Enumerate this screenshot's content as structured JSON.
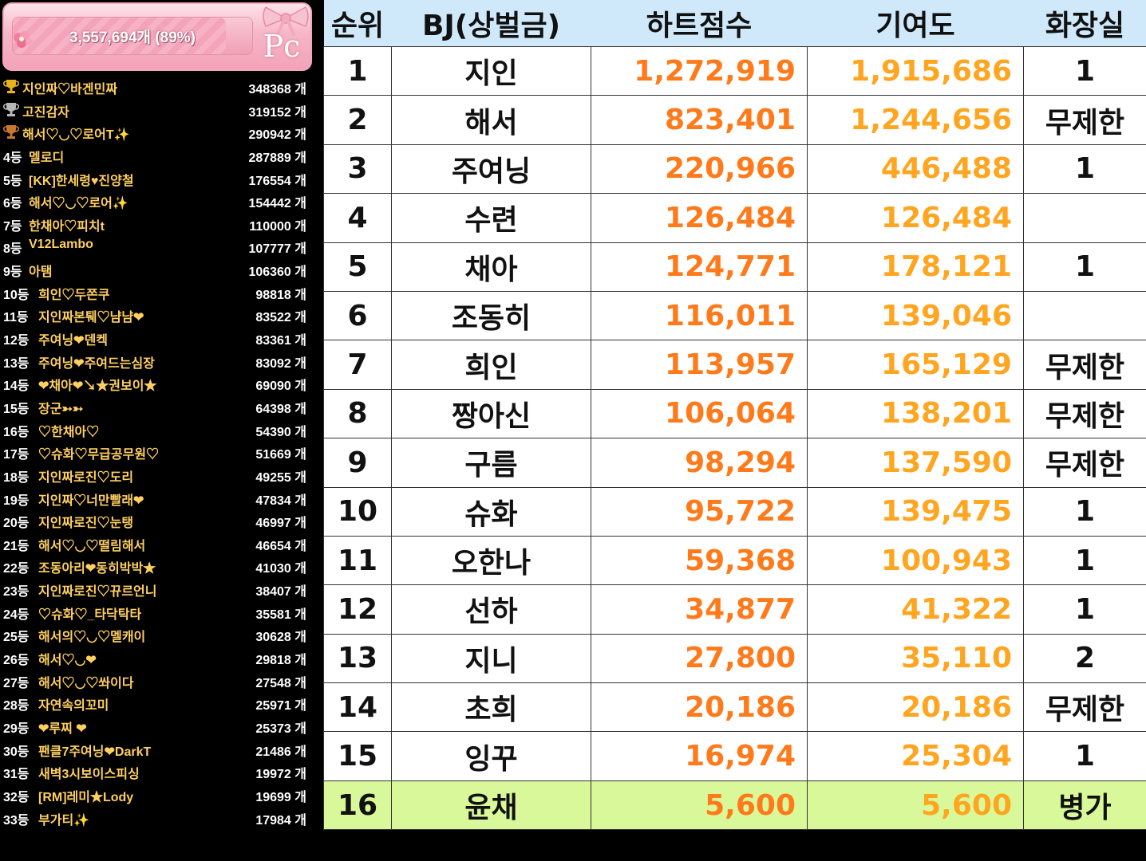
{
  "banner": {
    "progress_text": "3,557,694개 (89%)",
    "progress_percent": 89,
    "logo_text": "Pc"
  },
  "colors": {
    "heart_score": "#ff7a1a",
    "contribution": "#ffa51f",
    "header_bg": "#cfe9fb",
    "highlight_row": "#d9f89a",
    "donor_name": "#ffd060",
    "gold_trophy": "#e8b21e",
    "silver_trophy": "#b8b8b8",
    "bronze_trophy": "#c8782c"
  },
  "donors": [
    {
      "rank": "",
      "trophy": "gold",
      "name": "지인짜♡바겐민짜",
      "amount": "348368 개"
    },
    {
      "rank": "",
      "trophy": "silver",
      "name": "고진감자",
      "amount": "319152 개"
    },
    {
      "rank": "",
      "trophy": "bronze",
      "name": "해서♡◡♡로어T✨",
      "amount": "290942 개"
    },
    {
      "rank": "4등",
      "name": "  멜로디",
      "amount": "287889 개"
    },
    {
      "rank": "5등",
      "name": "[KK]한세령♥진양철",
      "amount": "176554 개"
    },
    {
      "rank": "6등",
      "name": "해서♡◡♡로어✨",
      "amount": "154442 개"
    },
    {
      "rank": "7등",
      "name": "한채아♡피치t",
      "amount": "110000 개"
    },
    {
      "rank": "8등",
      "name": "V12Lambo",
      "amount": "107777 개"
    },
    {
      "rank": "9등",
      "name": "아탬",
      "amount": "106360 개"
    },
    {
      "rank": "10등",
      "name": "희인♡두쫀쿠",
      "amount": "98818 개"
    },
    {
      "rank": "11등",
      "name": "지인짜본퉤♡냠냠❤",
      "amount": "83522 개"
    },
    {
      "rank": "12등",
      "name": "주여닝❤덴켁",
      "amount": "83361 개"
    },
    {
      "rank": "13등",
      "name": "주여닝❤주여드는심장",
      "amount": "83092 개"
    },
    {
      "rank": "14등",
      "name": "❤채아❤↘★권보이★",
      "amount": "69090 개"
    },
    {
      "rank": "15등",
      "name": "장군➳➳",
      "amount": "64398 개"
    },
    {
      "rank": "16등",
      "name": "♡한채아♡",
      "amount": "54390 개"
    },
    {
      "rank": "17등",
      "name": "♡슈화♡무급공무원♡",
      "amount": "51669 개"
    },
    {
      "rank": "18등",
      "name": "지인짜로진♡도리",
      "amount": "49255 개"
    },
    {
      "rank": "19등",
      "name": "지인짜♡너만빨래❤",
      "amount": "47834 개"
    },
    {
      "rank": "20등",
      "name": "지인짜로진♡눈탱",
      "amount": "46997 개"
    },
    {
      "rank": "21등",
      "name": "해서♡◡♡떨림해서",
      "amount": "46654 개"
    },
    {
      "rank": "22등",
      "name": "조동아리❤동히박박★",
      "amount": "41030 개"
    },
    {
      "rank": "23등",
      "name": "지인짜로진♡뀨르언니",
      "amount": "38407 개"
    },
    {
      "rank": "24등",
      "name": "♡슈화♡_타닥탁타",
      "amount": "35581 개"
    },
    {
      "rank": "25등",
      "name": "해서의♡◡♡멜캐이",
      "amount": "30628 개"
    },
    {
      "rank": "26등",
      "name": "해서♡◡❤",
      "amount": "29818 개"
    },
    {
      "rank": "27등",
      "name": "해서♡◡♡쏴이다",
      "amount": "27548 개"
    },
    {
      "rank": "28등",
      "name": "자연속의꼬미",
      "amount": "25971 개"
    },
    {
      "rank": "29등",
      "name": "❤루찌    ❤",
      "amount": "25373 개"
    },
    {
      "rank": "30등",
      "name": "팬클7주여닝❤DarkT",
      "amount": "21486 개"
    },
    {
      "rank": "31등",
      "name": "새벽3시보이스피싱",
      "amount": "19972 개"
    },
    {
      "rank": "32등",
      "name": "[RM]레미★Lody",
      "amount": "19699 개"
    },
    {
      "rank": "33등",
      "name": "부가티✨",
      "amount": "17984 개"
    }
  ],
  "table": {
    "headers": [
      "순위",
      "BJ(상벌금)",
      "하트점수",
      "기여도",
      "화장실"
    ],
    "rows": [
      {
        "rank": "1",
        "bj": "지인",
        "heart": "1,272,919",
        "contrib": "1,915,686",
        "rest": "1"
      },
      {
        "rank": "2",
        "bj": "해서",
        "heart": "823,401",
        "contrib": "1,244,656",
        "rest": "무제한"
      },
      {
        "rank": "3",
        "bj": "주여닝",
        "heart": "220,966",
        "contrib": "446,488",
        "rest": "1"
      },
      {
        "rank": "4",
        "bj": "수련",
        "heart": "126,484",
        "contrib": "126,484",
        "rest": ""
      },
      {
        "rank": "5",
        "bj": "채아",
        "heart": "124,771",
        "contrib": "178,121",
        "rest": "1"
      },
      {
        "rank": "6",
        "bj": "조동히",
        "heart": "116,011",
        "contrib": "139,046",
        "rest": ""
      },
      {
        "rank": "7",
        "bj": "희인",
        "heart": "113,957",
        "contrib": "165,129",
        "rest": "무제한"
      },
      {
        "rank": "8",
        "bj": "짱아신",
        "heart": "106,064",
        "contrib": "138,201",
        "rest": "무제한"
      },
      {
        "rank": "9",
        "bj": "구름",
        "heart": "98,294",
        "contrib": "137,590",
        "rest": "무제한"
      },
      {
        "rank": "10",
        "bj": "슈화",
        "heart": "95,722",
        "contrib": "139,475",
        "rest": "1"
      },
      {
        "rank": "11",
        "bj": "오한나",
        "heart": "59,368",
        "contrib": "100,943",
        "rest": "1"
      },
      {
        "rank": "12",
        "bj": "선하",
        "heart": "34,877",
        "contrib": "41,322",
        "rest": "1"
      },
      {
        "rank": "13",
        "bj": "지니",
        "heart": "27,800",
        "contrib": "35,110",
        "rest": "2"
      },
      {
        "rank": "14",
        "bj": "초희",
        "heart": "20,186",
        "contrib": "20,186",
        "rest": "무제한"
      },
      {
        "rank": "15",
        "bj": "잉꾸",
        "heart": "16,974",
        "contrib": "25,304",
        "rest": "1"
      },
      {
        "rank": "16",
        "bj": "윤채",
        "heart": "5,600",
        "contrib": "5,600",
        "rest": "병가",
        "highlight": true
      }
    ]
  }
}
